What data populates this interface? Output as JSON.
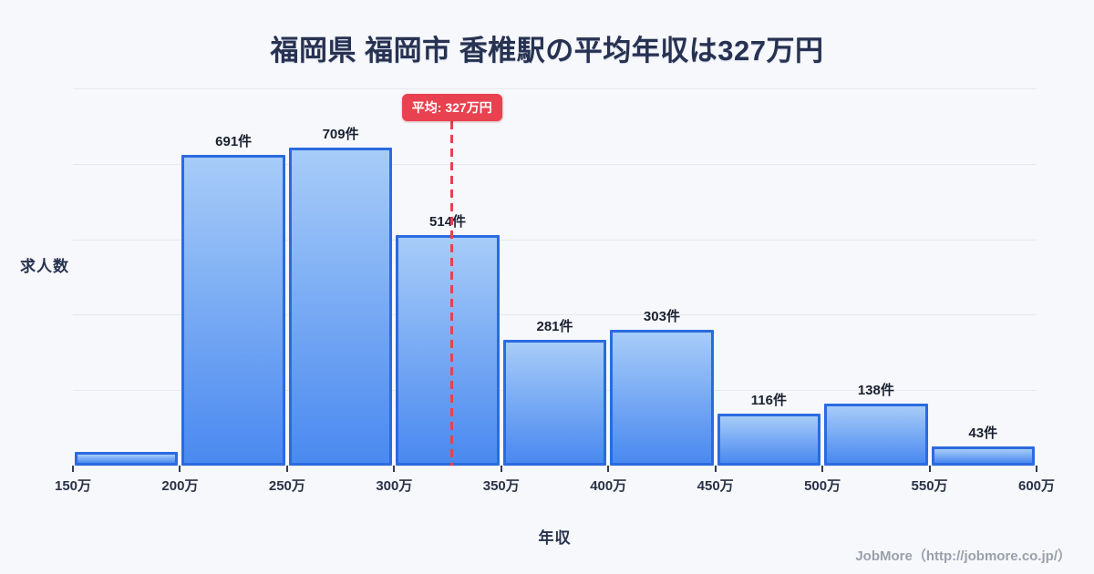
{
  "header": {
    "title": "福岡県 福岡市 香椎駅の平均年収は327万円"
  },
  "chart_data": {
    "type": "bar",
    "title": "福岡県 福岡市 香椎駅の平均年収は327万円",
    "xlabel": "年収",
    "ylabel": "求人数",
    "x_min": 150,
    "x_max": 600,
    "bin_edge_labels": [
      "150万",
      "200万",
      "250万",
      "300万",
      "350万",
      "400万",
      "450万",
      "500万",
      "550万",
      "600万"
    ],
    "categories": [
      "150万-200万",
      "200万-250万",
      "250万-300万",
      "300万-350万",
      "350万-400万",
      "400万-450万",
      "450万-500万",
      "500万-550万",
      "550万-600万"
    ],
    "values": [
      30,
      691,
      709,
      514,
      281,
      303,
      116,
      138,
      43
    ],
    "bar_labels": [
      "",
      "691件",
      "709件",
      "514件",
      "281件",
      "303件",
      "116件",
      "138件",
      "43件"
    ],
    "ylim": [
      0,
      840
    ],
    "grid": true,
    "legend": "none",
    "average": {
      "value": 327,
      "label": "平均: 327万円"
    },
    "colors": {
      "bar_gradient_top": "#a7ccf8",
      "bar_gradient_bottom": "#4a89f0",
      "bar_border": "#2a6be0",
      "average_line": "#e8414f",
      "average_badge_bg": "#e8414f",
      "average_badge_text": "#ffffff",
      "background": "#f7f8fb",
      "grid_line": "#e7e9f0",
      "title_text": "#273252",
      "label_text": "#1a2130",
      "footer_text": "#9aa0ab"
    }
  },
  "footer": {
    "credit": "JobMore（http://jobmore.co.jp/）"
  }
}
